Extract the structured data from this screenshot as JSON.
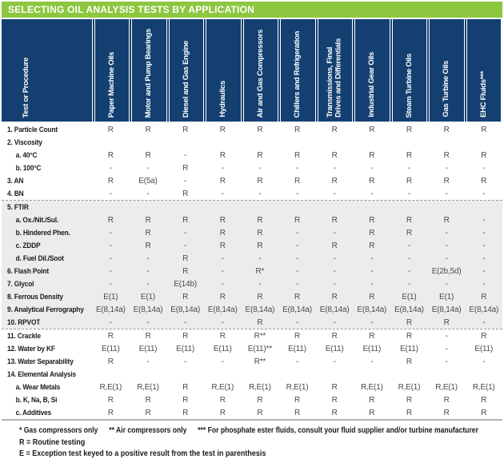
{
  "title": "SELECTING OIL ANALYSIS TESTS BY APPLICATION",
  "colors": {
    "title_bar_green": "#8dc63f",
    "header_navy": "#134071",
    "band_gray": "#ececea",
    "value_text": "#4b4b4d",
    "label_text": "#1a1a1a"
  },
  "columns": [
    {
      "label": "Test or Procedure"
    },
    {
      "label": "Paper Machine Oils"
    },
    {
      "label": "Motor and Pump Bearings"
    },
    {
      "label": "Diesel and Gas Engine"
    },
    {
      "label": "Hydraulics"
    },
    {
      "label": "Air and Gas Compressors"
    },
    {
      "label": "Chillers and Refrigeration"
    },
    {
      "label": "Transmissions, Final\nDrives and Differentials"
    },
    {
      "label": "Industrial Gear Oils"
    },
    {
      "label": "Steam Turbine Oils"
    },
    {
      "label": "Gas Turbine Oils"
    },
    {
      "label": "EHC Fluids***"
    }
  ],
  "rows": [
    {
      "label": "1. Particle Count",
      "indent": 0,
      "section": 1,
      "values": [
        "R",
        "R",
        "R",
        "R",
        "R",
        "R",
        "R",
        "R",
        "R",
        "R",
        "R"
      ]
    },
    {
      "label": "2. Viscosity",
      "indent": 0,
      "section": 1,
      "values": [
        "",
        "",
        "",
        "",
        "",
        "",
        "",
        "",
        "",
        "",
        ""
      ]
    },
    {
      "label": "a. 40°C",
      "indent": 1,
      "section": 1,
      "values": [
        "R",
        "R",
        "-",
        "R",
        "R",
        "R",
        "R",
        "R",
        "R",
        "R",
        "R"
      ]
    },
    {
      "label": "b. 100°C",
      "indent": 1,
      "section": 1,
      "values": [
        "-",
        "-",
        "R",
        "-",
        "-",
        "-",
        "-",
        "-",
        "-",
        "-",
        "-"
      ]
    },
    {
      "label": "3. AN",
      "indent": 0,
      "section": 1,
      "values": [
        "R",
        "E(5a)",
        "-",
        "R",
        "R",
        "R",
        "R",
        "R",
        "R",
        "R",
        "R"
      ]
    },
    {
      "label": "4. BN",
      "indent": 0,
      "section": 1,
      "values": [
        "-",
        "-",
        "R",
        "-",
        "-",
        "-",
        "-",
        "-",
        "-",
        "-",
        "-"
      ]
    },
    {
      "label": "5. FTIR",
      "indent": 0,
      "section": 2,
      "values": [
        "",
        "",
        "",
        "",
        "",
        "",
        "",
        "",
        "",
        "",
        ""
      ]
    },
    {
      "label": "a. Ox./Nit./Sul.",
      "indent": 1,
      "section": 2,
      "values": [
        "R",
        "R",
        "R",
        "R",
        "R",
        "R",
        "R",
        "R",
        "R",
        "R",
        "-"
      ]
    },
    {
      "label": "b. Hindered Phen.",
      "indent": 1,
      "section": 2,
      "values": [
        "-",
        "R",
        "-",
        "R",
        "R",
        "-",
        "-",
        "R",
        "R",
        "-",
        "-"
      ]
    },
    {
      "label": "c. ZDDP",
      "indent": 1,
      "section": 2,
      "values": [
        "-",
        "R",
        "-",
        "R",
        "R",
        "-",
        "R",
        "R",
        "-",
        "-",
        "-"
      ]
    },
    {
      "label": "d. Fuel Dil./Soot",
      "indent": 1,
      "section": 2,
      "values": [
        "-",
        "-",
        "R",
        "-",
        "-",
        "-",
        "-",
        "-",
        "-",
        "-",
        "-"
      ]
    },
    {
      "label": "6. Flash Point",
      "indent": 0,
      "section": 2,
      "values": [
        "-",
        "-",
        "R",
        "-",
        "R*",
        "-",
        "-",
        "-",
        "-",
        "E(2b,5d)",
        "-"
      ]
    },
    {
      "label": "7. Glycol",
      "indent": 0,
      "section": 2,
      "values": [
        "-",
        "-",
        "E(14b)",
        "-",
        "-",
        "-",
        "-",
        "-",
        "-",
        "-",
        "-"
      ]
    },
    {
      "label": "8. Ferrous Density",
      "indent": 0,
      "section": 2,
      "values": [
        "E(1)",
        "E(1)",
        "R",
        "R",
        "R",
        "R",
        "R",
        "R",
        "E(1)",
        "E(1)",
        "R"
      ]
    },
    {
      "label": "9. Analytical Ferrography",
      "indent": 0,
      "section": 2,
      "values": [
        "E(8,14a)",
        "E(8,14a)",
        "E(8,14a)",
        "E(8,14a)",
        "E(8,14a)",
        "E(8,14a)",
        "E(8,14a)",
        "E(8,14a)",
        "E(8,14a)",
        "E(8,14a)",
        "E(8,14a)"
      ]
    },
    {
      "label": "10. RPVOT",
      "indent": 0,
      "section": 2,
      "values": [
        "-",
        "-",
        "-",
        "-",
        "R",
        "-",
        "-",
        "-",
        "R",
        "R",
        "-"
      ]
    },
    {
      "label": "11. Crackle",
      "indent": 0,
      "section": 3,
      "values": [
        "R",
        "R",
        "R",
        "R",
        "R**",
        "R",
        "R",
        "R",
        "R",
        "-",
        "R"
      ]
    },
    {
      "label": "12. Water by KF",
      "indent": 0,
      "section": 3,
      "values": [
        "E(11)",
        "E(11)",
        "E(11)",
        "E(11)",
        "E(11)**",
        "E(11)",
        "E(11)",
        "E(11)",
        "E(11)",
        "-",
        "E(11)"
      ]
    },
    {
      "label": "13. Water Separability",
      "indent": 0,
      "section": 3,
      "values": [
        "R",
        "-",
        "-",
        "-",
        "R**",
        "-",
        "-",
        "-",
        "R",
        "-",
        "-"
      ]
    },
    {
      "label": "14. Elemental Analysis",
      "indent": 0,
      "section": 3,
      "values": [
        "",
        "",
        "",
        "",
        "",
        "",
        "",
        "",
        "",
        "",
        ""
      ]
    },
    {
      "label": "a. Wear Metals",
      "indent": 1,
      "section": 3,
      "values": [
        "R,E(1)",
        "R,E(1)",
        "R",
        "R,E(1)",
        "R,E(1)",
        "R,E(1)",
        "R",
        "R,E(1)",
        "R,E(1)",
        "R,E(1)",
        "R,E(1)"
      ]
    },
    {
      "label": "b. K, Na, B, Si",
      "indent": 1,
      "section": 3,
      "values": [
        "R",
        "R",
        "R",
        "R",
        "R",
        "R",
        "R",
        "R",
        "R",
        "R",
        "R"
      ]
    },
    {
      "label": "c. Additives",
      "indent": 1,
      "section": 3,
      "values": [
        "R",
        "R",
        "R",
        "R",
        "R",
        "R",
        "R",
        "R",
        "R",
        "R",
        "R"
      ]
    }
  ],
  "footnotes": {
    "symbols": [
      "* Gas compressors only",
      "** Air compressors only",
      "*** For phosphate ester fluids, consult your fluid supplier and/or turbine manufacturer"
    ],
    "legend": [
      "R = Routine testing",
      "E = Exception test keyed to a positive result from the test in parenthesis"
    ]
  }
}
